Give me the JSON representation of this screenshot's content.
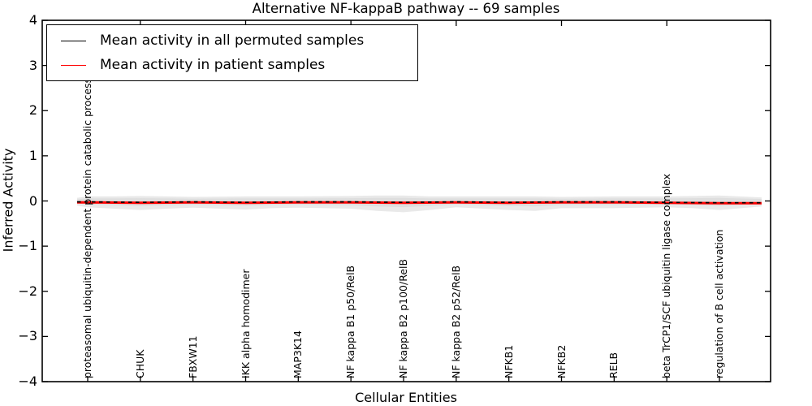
{
  "chart_data": {
    "type": "line",
    "title": "Alternative NF-kappaB pathway -- 69 samples",
    "xlabel": "Cellular Entities",
    "ylabel": "Inferred Activity",
    "ylim": [
      -4,
      4
    ],
    "grid": false,
    "legend_position": "upper left",
    "yticks": [
      {
        "value": 4,
        "label": "4"
      },
      {
        "value": 3,
        "label": "3"
      },
      {
        "value": 2,
        "label": "2"
      },
      {
        "value": 1,
        "label": "1"
      },
      {
        "value": 0,
        "label": "0"
      },
      {
        "value": -1,
        "label": "−1"
      },
      {
        "value": -2,
        "label": "−2"
      },
      {
        "value": -3,
        "label": "−3"
      },
      {
        "value": -4,
        "label": "−4"
      }
    ],
    "categories": [
      "proteasomal ubiquitin-dependent protein catabolic process",
      "CHUK",
      "FBXW11",
      "IKK alpha homodimer",
      "MAP3K14",
      "NF kappa B1 p50/RelB",
      "NF kappa B2 p100/RelB",
      "NF kappa B2 p52/RelB",
      "NFKB1",
      "NFKB2",
      "RELB",
      "beta TrCP1/SCF ubiquitin ligase complex",
      "regulation of B cell activation"
    ],
    "series": [
      {
        "name": "Mean activity in all permuted samples",
        "color": "#000000",
        "line_style": "dashed",
        "values": [
          -0.02,
          -0.03,
          -0.02,
          -0.03,
          -0.02,
          -0.02,
          -0.03,
          -0.02,
          -0.03,
          -0.02,
          -0.02,
          -0.03,
          -0.04
        ]
      },
      {
        "name": "Mean activity in patient samples",
        "color": "#ff0000",
        "line_style": "solid",
        "values": [
          -0.03,
          -0.04,
          -0.03,
          -0.04,
          -0.03,
          -0.03,
          -0.04,
          -0.03,
          -0.04,
          -0.03,
          -0.03,
          -0.04,
          -0.05
        ]
      }
    ],
    "band": {
      "color": "#d4d4d4",
      "x": [
        -0.2,
        0,
        0.5,
        1,
        1.5,
        2,
        3,
        3.5,
        4,
        5,
        5.5,
        6,
        6.5,
        7,
        8,
        8.5,
        9,
        10,
        11,
        11.5,
        12,
        12.8
      ],
      "upper": [
        0.07,
        0.1,
        0.1,
        0.11,
        0.1,
        0.09,
        0.1,
        0.1,
        0.1,
        0.11,
        0.12,
        0.12,
        0.1,
        0.1,
        0.1,
        0.1,
        0.09,
        0.1,
        0.1,
        0.11,
        0.12,
        0.08
      ],
      "lower": [
        -0.1,
        -0.14,
        -0.17,
        -0.2,
        -0.17,
        -0.15,
        -0.19,
        -0.16,
        -0.15,
        -0.17,
        -0.22,
        -0.25,
        -0.2,
        -0.14,
        -0.2,
        -0.22,
        -0.16,
        -0.16,
        -0.14,
        -0.16,
        -0.2,
        -0.12
      ]
    }
  }
}
